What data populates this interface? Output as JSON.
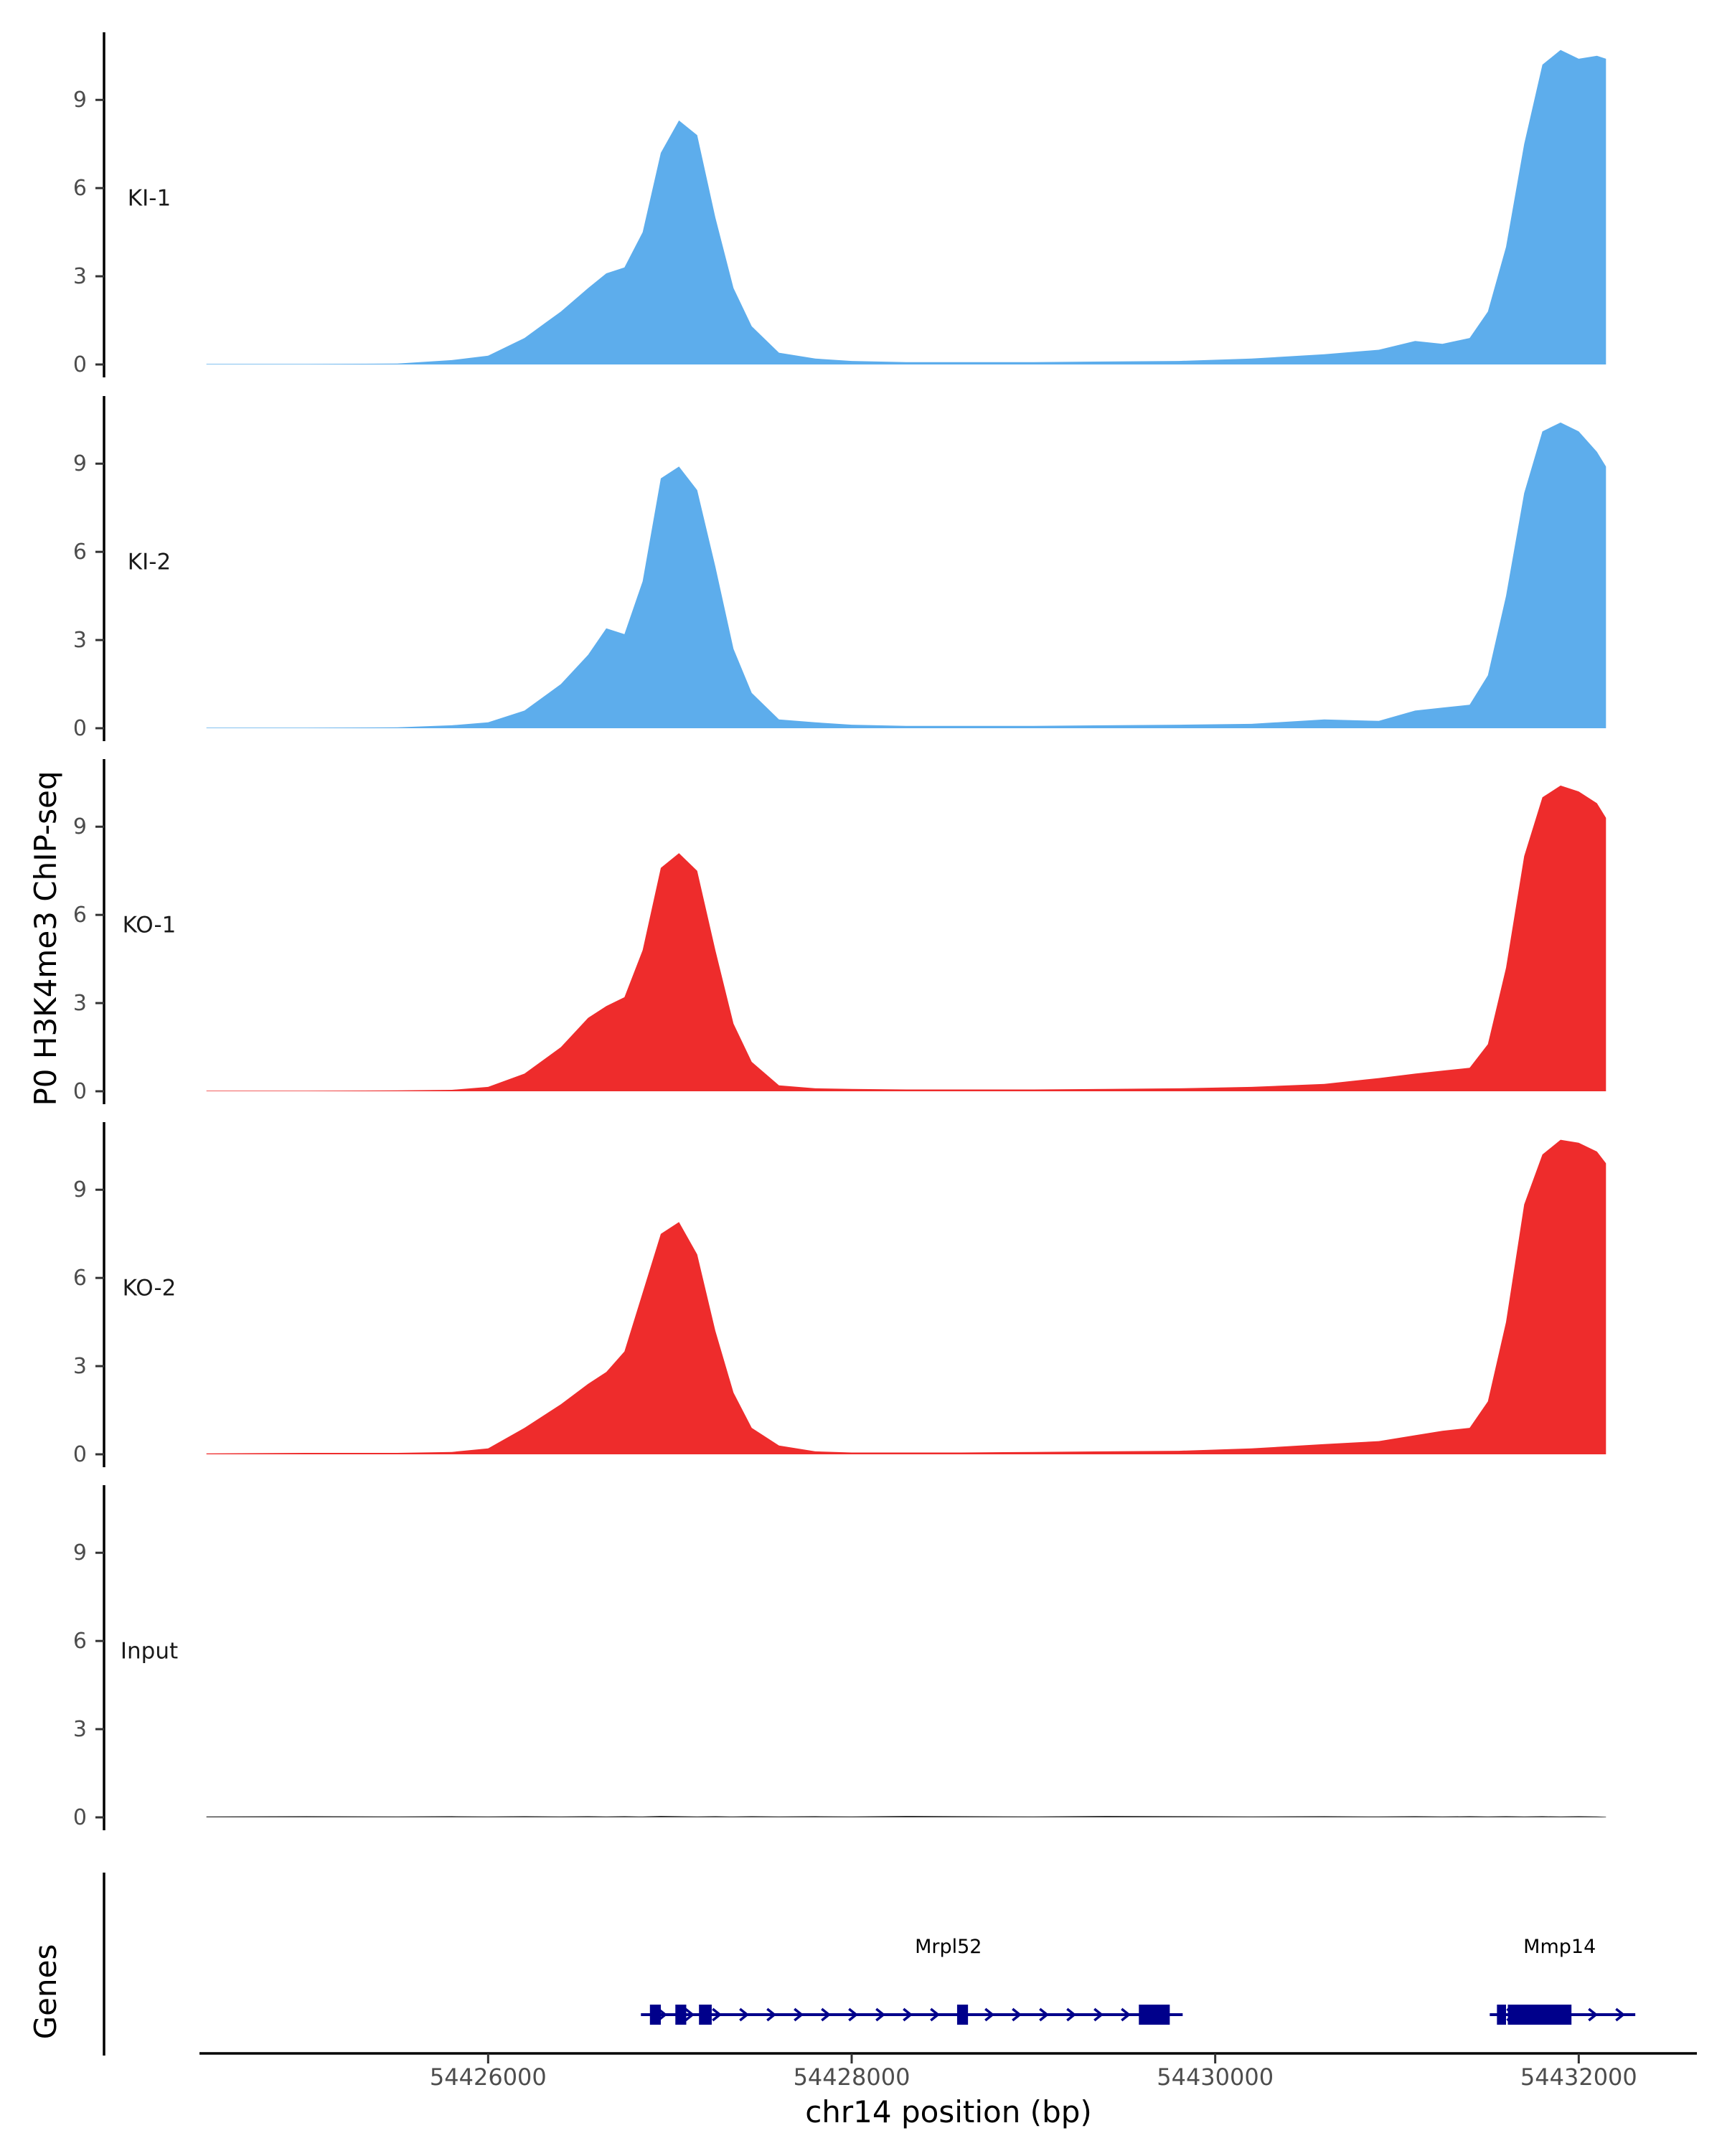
{
  "chart_data": {
    "type": "area",
    "ylabel": "P0 H3K4me3 ChIP-seq",
    "xlabel": "chr14 position (bp)",
    "gene_panel_label": "Genes",
    "xlim": [
      54424400,
      54432650
    ],
    "ylim": [
      0,
      11.3
    ],
    "yticks": [
      0,
      3,
      6,
      9
    ],
    "xticks": [
      54426000,
      54428000,
      54430000,
      54432000
    ],
    "x": [
      54424450,
      54425000,
      54425500,
      54425800,
      54426000,
      54426200,
      54426400,
      54426550,
      54426650,
      54426750,
      54426850,
      54426950,
      54427050,
      54427150,
      54427250,
      54427350,
      54427450,
      54427600,
      54427800,
      54428000,
      54428300,
      54428600,
      54429000,
      54429400,
      54429800,
      54430200,
      54430600,
      54430900,
      54431100,
      54431250,
      54431400,
      54431500,
      54431600,
      54431700,
      54431800,
      54431900,
      54432000,
      54432100,
      54432150
    ],
    "series": [
      {
        "name": "KI-1",
        "color": "#5DADEC",
        "values": [
          0.02,
          0.02,
          0.03,
          0.15,
          0.3,
          0.9,
          1.8,
          2.6,
          3.1,
          3.3,
          4.5,
          7.2,
          8.3,
          7.8,
          5.0,
          2.6,
          1.3,
          0.4,
          0.2,
          0.12,
          0.08,
          0.08,
          0.08,
          0.1,
          0.12,
          0.2,
          0.35,
          0.5,
          0.8,
          0.7,
          0.9,
          1.8,
          4.0,
          7.5,
          10.2,
          10.7,
          10.4,
          10.5,
          10.4
        ]
      },
      {
        "name": "KI-2",
        "color": "#5DADEC",
        "values": [
          0.02,
          0.02,
          0.03,
          0.1,
          0.2,
          0.6,
          1.5,
          2.5,
          3.4,
          3.2,
          5.0,
          8.5,
          8.9,
          8.1,
          5.5,
          2.7,
          1.2,
          0.3,
          0.2,
          0.12,
          0.08,
          0.08,
          0.08,
          0.1,
          0.12,
          0.15,
          0.3,
          0.25,
          0.6,
          0.7,
          0.8,
          1.8,
          4.5,
          8.0,
          10.1,
          10.4,
          10.1,
          9.4,
          8.9
        ]
      },
      {
        "name": "KO-1",
        "color": "#EE2C2C",
        "values": [
          0.02,
          0.02,
          0.03,
          0.05,
          0.15,
          0.6,
          1.5,
          2.5,
          2.9,
          3.2,
          4.8,
          7.6,
          8.1,
          7.5,
          4.8,
          2.3,
          1.0,
          0.2,
          0.1,
          0.08,
          0.06,
          0.06,
          0.06,
          0.08,
          0.1,
          0.15,
          0.25,
          0.45,
          0.6,
          0.7,
          0.8,
          1.6,
          4.2,
          8.0,
          10.0,
          10.4,
          10.2,
          9.8,
          9.3
        ]
      },
      {
        "name": "KO-2",
        "color": "#EE2C2C",
        "values": [
          0.03,
          0.05,
          0.05,
          0.08,
          0.2,
          0.9,
          1.7,
          2.4,
          2.8,
          3.5,
          5.5,
          7.5,
          7.9,
          6.8,
          4.2,
          2.1,
          0.9,
          0.3,
          0.1,
          0.06,
          0.06,
          0.06,
          0.08,
          0.1,
          0.12,
          0.2,
          0.35,
          0.45,
          0.65,
          0.8,
          0.9,
          1.8,
          4.5,
          8.5,
          10.2,
          10.7,
          10.6,
          10.3,
          9.9
        ]
      },
      {
        "name": "Input",
        "color": "#333333",
        "values": [
          0.03,
          0.04,
          0.03,
          0.04,
          0.03,
          0.04,
          0.03,
          0.04,
          0.03,
          0.04,
          0.03,
          0.05,
          0.04,
          0.03,
          0.04,
          0.03,
          0.04,
          0.03,
          0.04,
          0.03,
          0.05,
          0.04,
          0.03,
          0.05,
          0.04,
          0.03,
          0.04,
          0.03,
          0.04,
          0.03,
          0.04,
          0.03,
          0.04,
          0.03,
          0.04,
          0.03,
          0.04,
          0.03,
          0.02
        ]
      }
    ],
    "genes": [
      {
        "name": "Mrpl52",
        "start": 54426880,
        "end": 54429750,
        "color": "#00008B",
        "exons": [
          [
            54426890,
            54426950
          ],
          [
            54427030,
            54427090
          ],
          [
            54427160,
            54427230
          ],
          [
            54428580,
            54428640
          ],
          [
            54429580,
            54429750
          ]
        ]
      },
      {
        "name": "Mmp14",
        "start": 54431550,
        "end": 54432240,
        "color": "#00008B",
        "exons": [
          [
            54431550,
            54431600
          ],
          [
            54431610,
            54431960
          ]
        ]
      }
    ]
  }
}
